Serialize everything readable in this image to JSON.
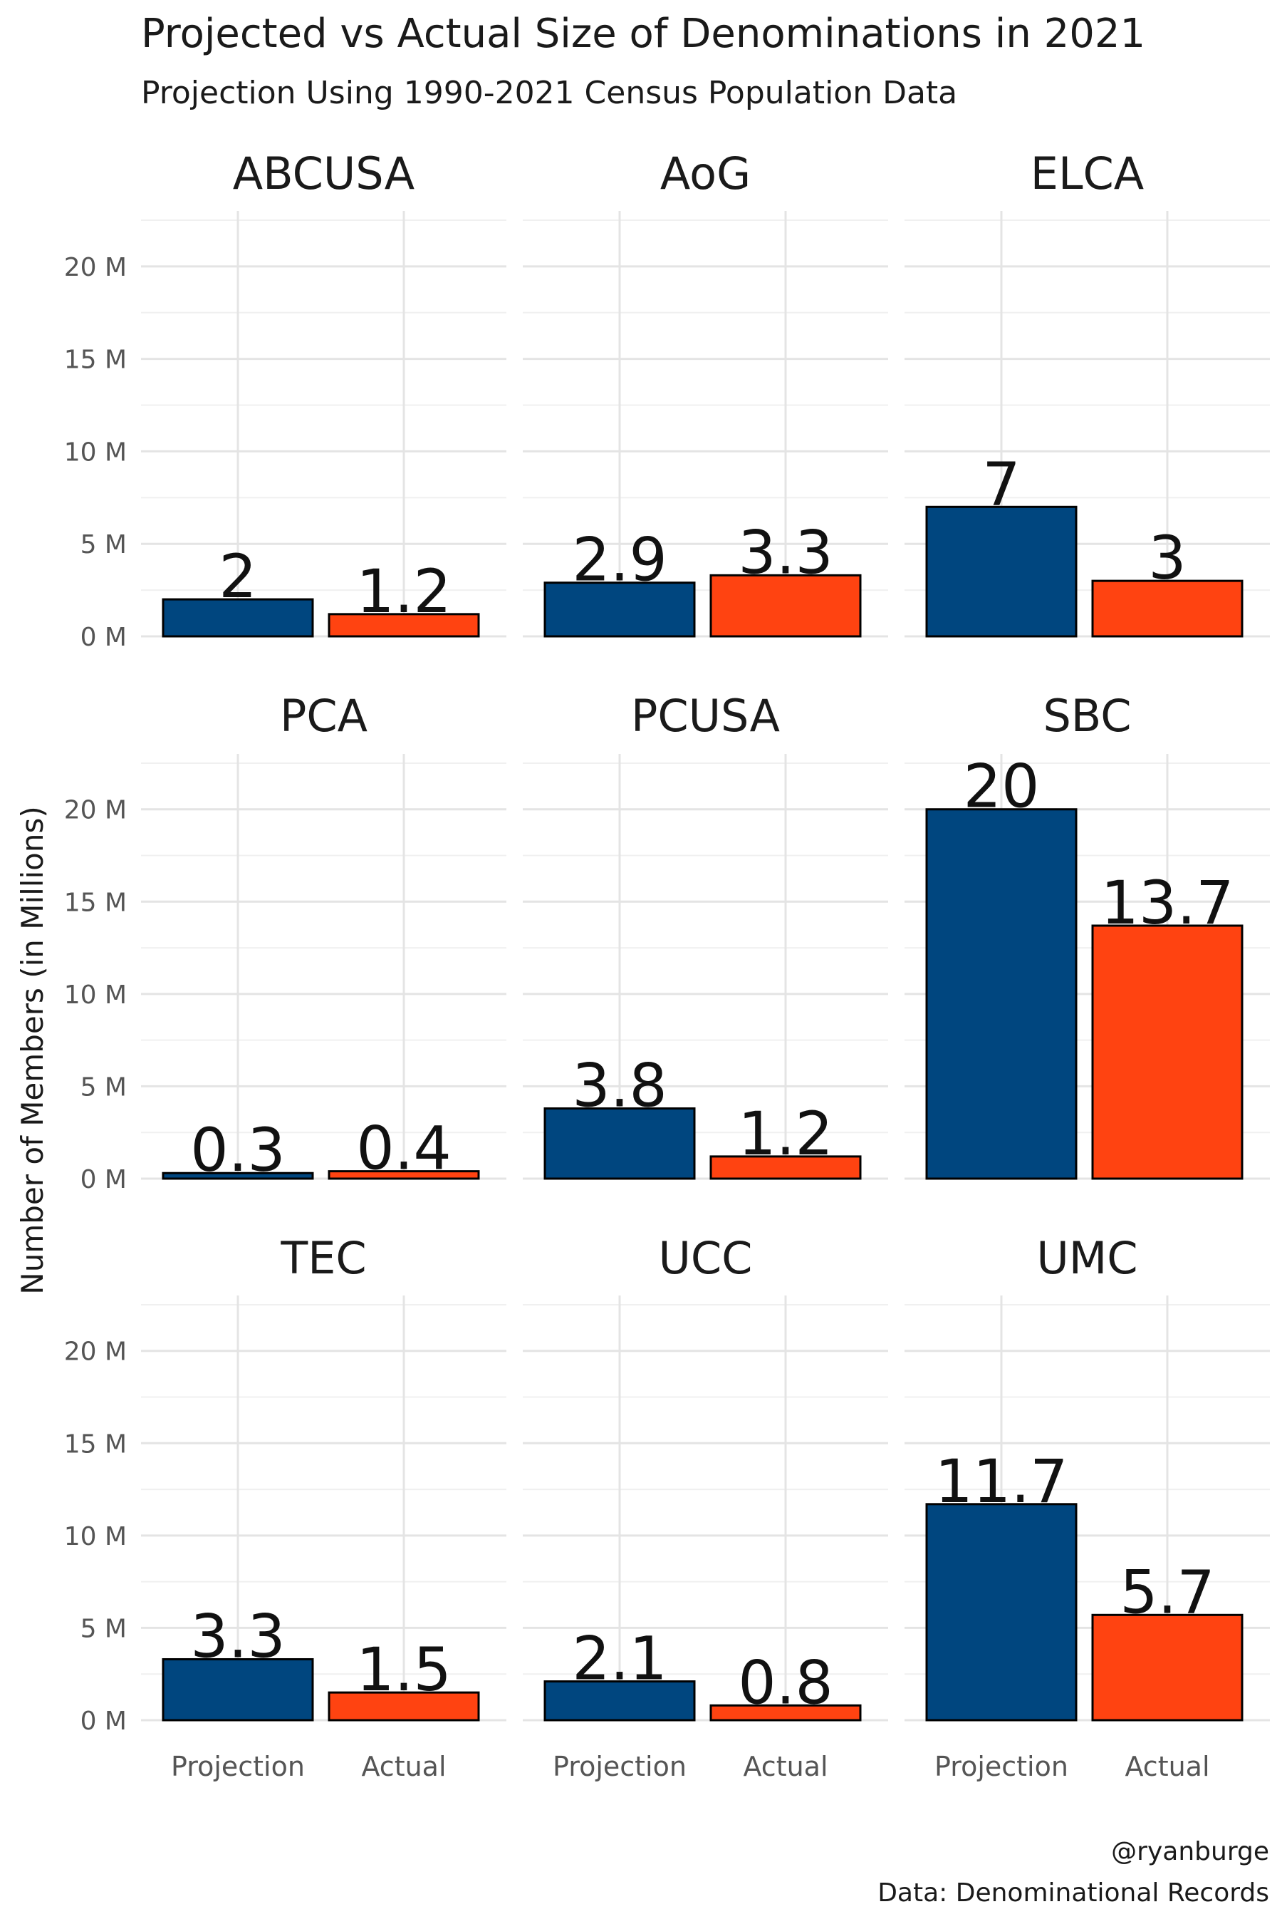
{
  "title": "Projected vs Actual Size of Denominations in 2021",
  "subtitle": "Projection Using 1990-2021 Census Population Data",
  "caption": [
    "@ryanburge",
    "Data: Denominational Records"
  ],
  "colors": {
    "Projection": "#00467F",
    "Actual": "#FF4311"
  },
  "chart_data": {
    "type": "bar",
    "facet_layout": "3x3 grid",
    "categories": [
      "Projection",
      "Actual"
    ],
    "ylabel": "Number of Members (in Millions)",
    "xlabel": "",
    "ylim": [
      0,
      23
    ],
    "yticks": [
      0,
      5,
      10,
      15,
      20
    ],
    "ytick_labels": [
      "0 M",
      "5 M",
      "10 M",
      "15 M",
      "20 M"
    ],
    "grid": true,
    "legend": "none",
    "panels": [
      {
        "name": "ABCUSA",
        "values": [
          2,
          1.2
        ],
        "labels": [
          "2",
          "1.2"
        ]
      },
      {
        "name": "AoG",
        "values": [
          2.9,
          3.3
        ],
        "labels": [
          "2.9",
          "3.3"
        ]
      },
      {
        "name": "ELCA",
        "values": [
          7,
          3
        ],
        "labels": [
          "7",
          "3"
        ]
      },
      {
        "name": "PCA",
        "values": [
          0.3,
          0.4
        ],
        "labels": [
          "0.3",
          "0.4"
        ]
      },
      {
        "name": "PCUSA",
        "values": [
          3.8,
          1.2
        ],
        "labels": [
          "3.8",
          "1.2"
        ]
      },
      {
        "name": "SBC",
        "values": [
          20,
          13.7
        ],
        "labels": [
          "20",
          "13.7"
        ]
      },
      {
        "name": "TEC",
        "values": [
          3.3,
          1.5
        ],
        "labels": [
          "3.3",
          "1.5"
        ]
      },
      {
        "name": "UCC",
        "values": [
          2.1,
          0.8
        ],
        "labels": [
          "2.1",
          "0.8"
        ]
      },
      {
        "name": "UMC",
        "values": [
          11.7,
          5.7
        ],
        "labels": [
          "11.7",
          "5.7"
        ]
      }
    ]
  }
}
